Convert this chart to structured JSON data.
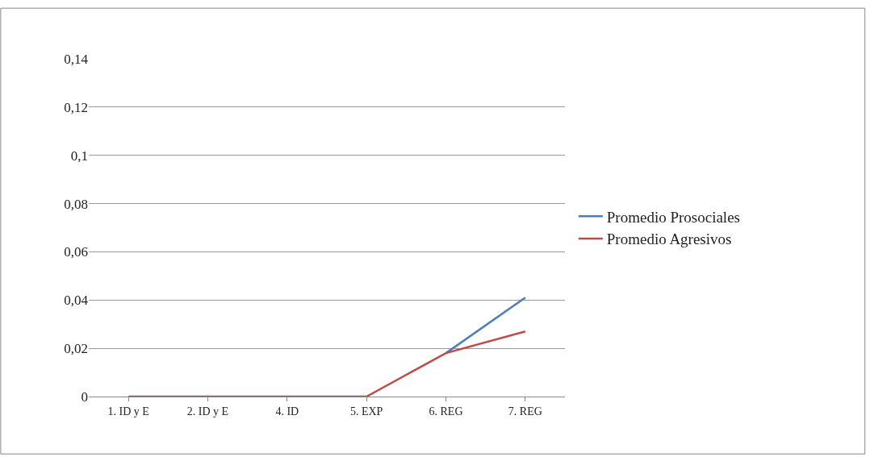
{
  "chart_data": {
    "type": "line",
    "categories": [
      "1. ID y E",
      "2. ID y E",
      "4. ID",
      "5. EXP",
      "6. REG",
      "7. REG"
    ],
    "series": [
      {
        "name": "Promedio Prosociales",
        "color": "#4a7ebb",
        "values": [
          null,
          null,
          null,
          null,
          0.018,
          0.041
        ]
      },
      {
        "name": "Promedio Agresivos",
        "color": "#be4b48",
        "values": [
          0,
          0,
          0,
          0,
          0.018,
          0.027
        ]
      }
    ],
    "ylim": [
      0,
      0.14
    ],
    "yticks": [
      {
        "value": 0,
        "label": "0"
      },
      {
        "value": 0.02,
        "label": "0,02"
      },
      {
        "value": 0.04,
        "label": "0,04"
      },
      {
        "value": 0.06,
        "label": "0,06"
      },
      {
        "value": 0.08,
        "label": "0,08"
      },
      {
        "value": 0.1,
        "label": "0,1"
      },
      {
        "value": 0.12,
        "label": "0,12"
      },
      {
        "value": 0.14,
        "label": "0,14"
      }
    ],
    "grid": "y",
    "legend": "right",
    "marker": "none",
    "line_style": "solid"
  }
}
